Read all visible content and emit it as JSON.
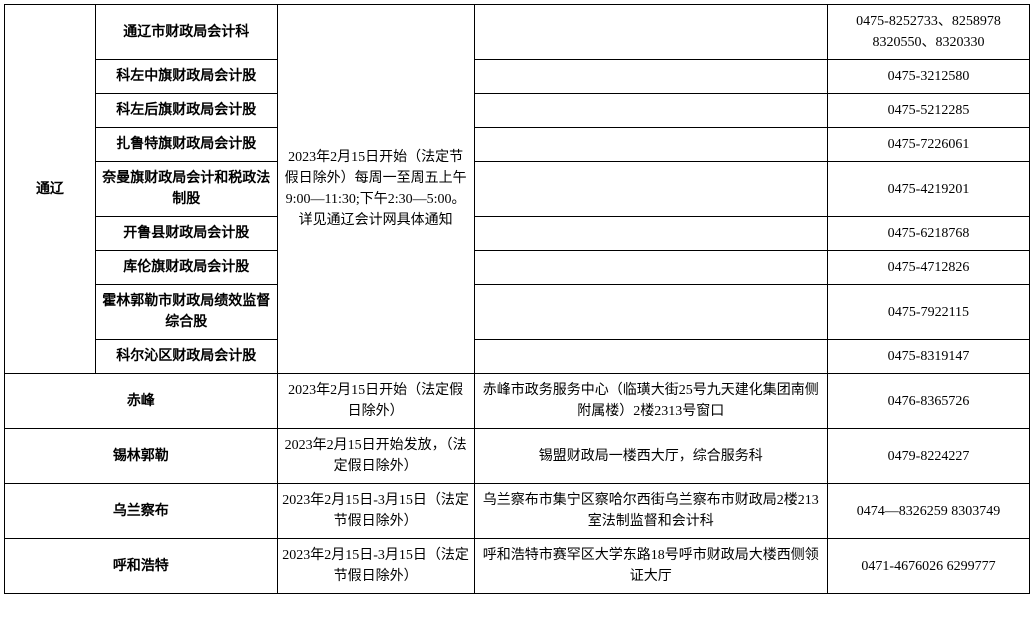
{
  "table": {
    "tongliao": {
      "region": "通辽",
      "schedule": "2023年2月15日开始（法定节假日除外）每周一至周五上午 9:00—11:30;下午2:30—5:00。详见通辽会计网具体通知",
      "rows": [
        {
          "dept": "通辽市财政局会计科",
          "address": "",
          "phone": "0475-8252733、8258978 8320550、8320330"
        },
        {
          "dept": "科左中旗财政局会计股",
          "address": "",
          "phone": "0475-3212580"
        },
        {
          "dept": "科左后旗财政局会计股",
          "address": "",
          "phone": "0475-5212285"
        },
        {
          "dept": "扎鲁特旗财政局会计股",
          "address": "",
          "phone": "0475-7226061"
        },
        {
          "dept": "奈曼旗财政局会计和税政法制股",
          "address": "",
          "phone": "0475-4219201"
        },
        {
          "dept": "开鲁县财政局会计股",
          "address": "",
          "phone": "0475-6218768"
        },
        {
          "dept": "库伦旗财政局会计股",
          "address": "",
          "phone": "0475-4712826"
        },
        {
          "dept": "霍林郭勒市财政局绩效监督综合股",
          "address": "",
          "phone": "0475-7922115"
        },
        {
          "dept": "科尔沁区财政局会计股",
          "address": "",
          "phone": "0475-8319147"
        }
      ]
    },
    "chifeng": {
      "region": "赤峰",
      "schedule": "2023年2月15日开始（法定假日除外）",
      "address": "赤峰市政务服务中心（临璜大街25号九天建化集团南侧附属楼）2楼2313号窗口",
      "phone": "0476-8365726"
    },
    "xilinguole": {
      "region": "锡林郭勒",
      "schedule": "2023年2月15日开始发放，（法定假日除外）",
      "address": "锡盟财政局一楼西大厅，综合服务科",
      "phone": "0479-8224227"
    },
    "wulanchabu": {
      "region": "乌兰察布",
      "schedule": "2023年2月15日-3月15日（法定节假日除外）",
      "address": "乌兰察布市集宁区察哈尔西街乌兰察布市财政局2楼213室法制监督和会计科",
      "phone": "0474—8326259 8303749"
    },
    "huhehaote": {
      "region": "呼和浩特",
      "schedule": "2023年2月15日-3月15日（法定节假日除外）",
      "address": "呼和浩特市赛罕区大学东路18号呼市财政局大楼西侧领证大厅",
      "phone": "0471-4676026 6299777"
    }
  },
  "styles": {
    "border_color": "#000000",
    "background_color": "#ffffff",
    "text_color": "#000000",
    "font_size": 14
  }
}
